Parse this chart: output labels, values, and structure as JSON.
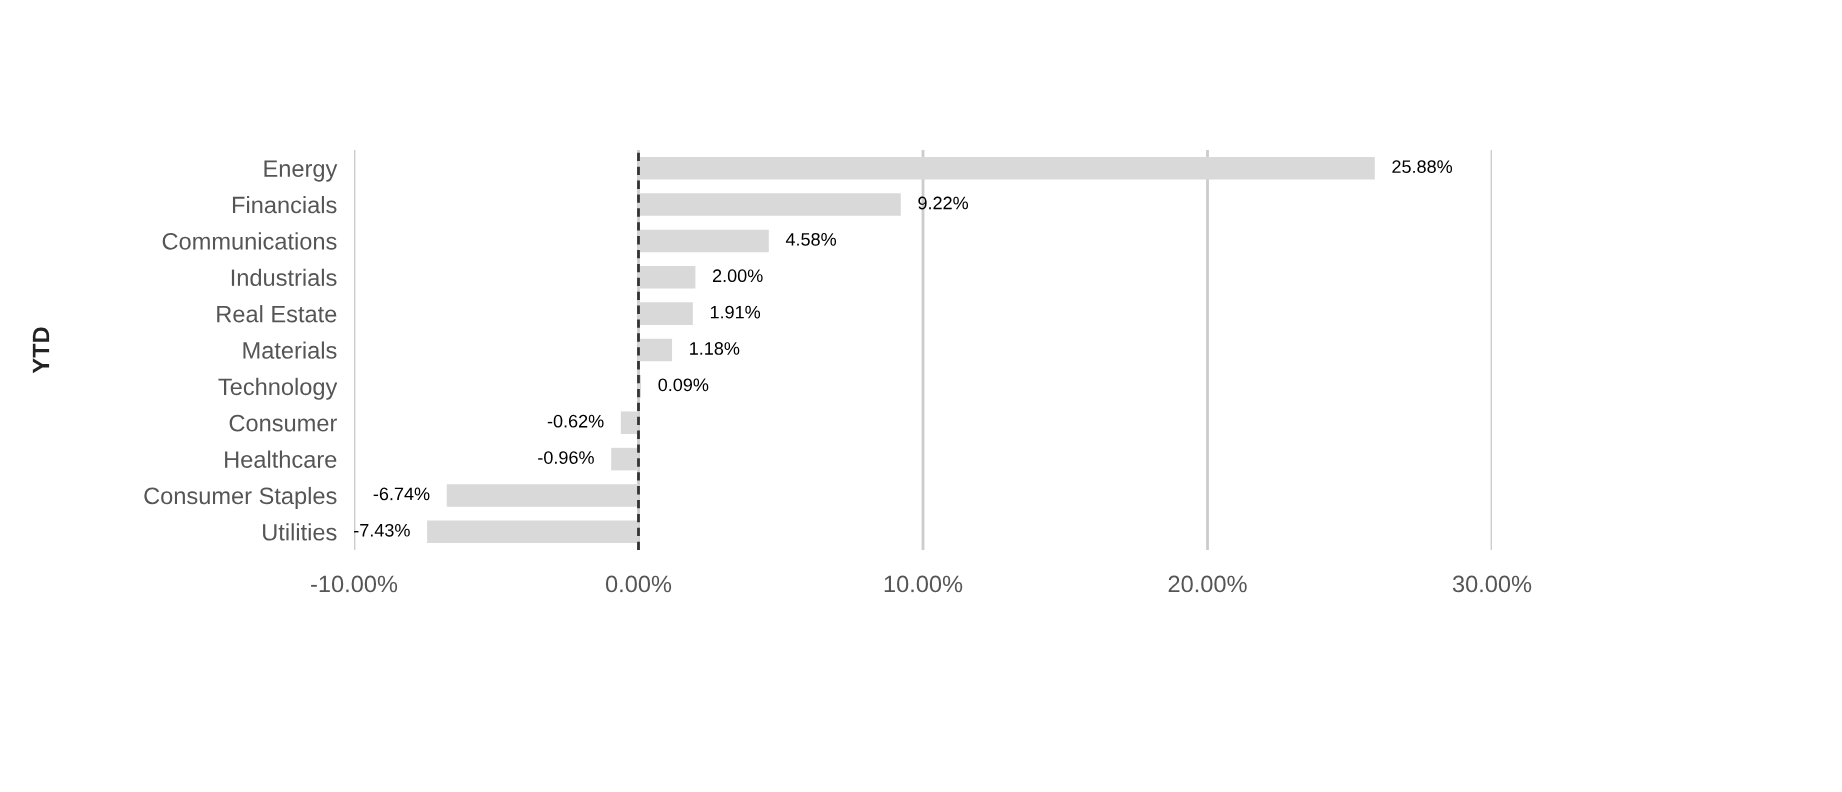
{
  "chart_data": {
    "type": "bar",
    "orientation": "horizontal",
    "ylabel": "YTD",
    "categories": [
      "Energy",
      "Financials",
      "Communications",
      "Industrials",
      "Real Estate",
      "Materials",
      "Technology",
      "Consumer",
      "Healthcare",
      "Consumer Staples",
      "Utilities"
    ],
    "values": [
      25.88,
      9.22,
      4.58,
      2.0,
      1.91,
      1.18,
      0.09,
      -0.62,
      -0.96,
      -6.74,
      -7.43
    ],
    "value_labels": [
      "25.88%",
      "9.22%",
      "4.58%",
      "2.00%",
      "1.91%",
      "1.18%",
      "0.09%",
      "-0.62%",
      "-0.96%",
      "-6.74%",
      "-7.43%"
    ],
    "color": "#d9d9d9",
    "xlim": [
      -10,
      30
    ],
    "xticks": [
      {
        "value": -10,
        "label": "-10.00%"
      },
      {
        "value": 0,
        "label": "0.00%"
      },
      {
        "value": 10,
        "label": "10.00%"
      },
      {
        "value": 20,
        "label": "20.00%"
      },
      {
        "value": 30,
        "label": "30.00%"
      }
    ],
    "ref_lines": [
      {
        "axis": "x",
        "value": 0,
        "color": "#333333",
        "line_style": "dashed"
      }
    ],
    "grid": "x",
    "legend": false
  }
}
